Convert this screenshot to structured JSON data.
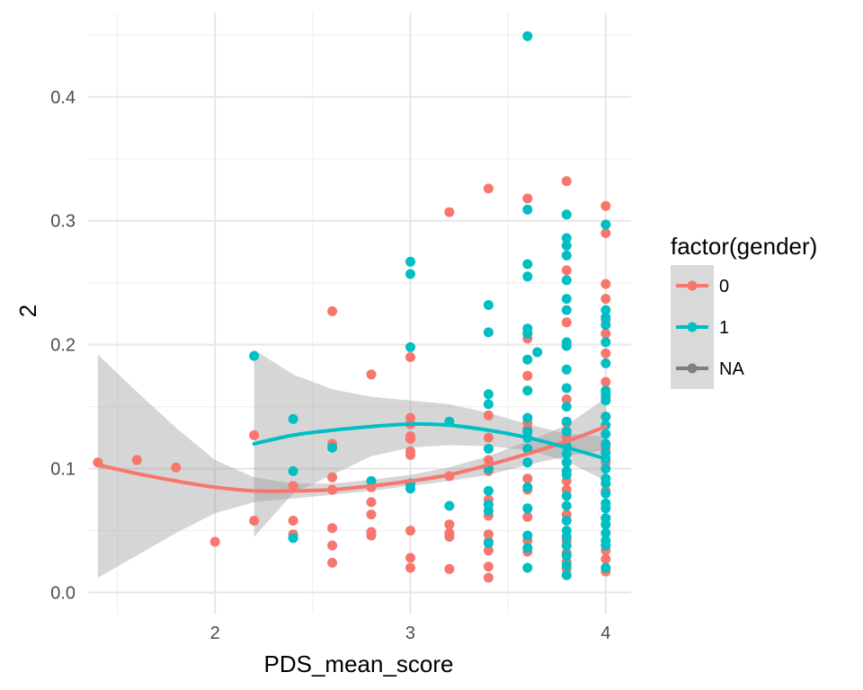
{
  "chart_data": {
    "type": "scatter",
    "title": "",
    "xlabel": "PDS_mean_score",
    "ylabel": "2",
    "xlim": [
      1.35,
      4.13
    ],
    "ylim": [
      -0.017,
      0.468
    ],
    "x_ticks": [
      2,
      3,
      4
    ],
    "x_tick_labels": [
      "2",
      "3",
      "4"
    ],
    "y_ticks": [
      0.0,
      0.1,
      0.2,
      0.3,
      0.4
    ],
    "y_tick_labels": [
      "0.0",
      "0.1",
      "0.2",
      "0.3",
      "0.4"
    ],
    "grid": true,
    "legend": {
      "title": "factor(gender)",
      "position": "right",
      "entries": [
        {
          "label": "0",
          "color": "#F8766D"
        },
        {
          "label": "1",
          "color": "#00BFC4"
        },
        {
          "label": "NA",
          "color": "#7F7F7F"
        }
      ]
    },
    "series": [
      {
        "name": "0",
        "color": "#F8766D",
        "points": [
          [
            1.4,
            0.105
          ],
          [
            1.6,
            0.107
          ],
          [
            1.8,
            0.101
          ],
          [
            2.0,
            0.041
          ],
          [
            2.2,
            0.127
          ],
          [
            2.2,
            0.058
          ],
          [
            2.4,
            0.086
          ],
          [
            2.4,
            0.058
          ],
          [
            2.4,
            0.047
          ],
          [
            2.6,
            0.227
          ],
          [
            2.6,
            0.12
          ],
          [
            2.6,
            0.093
          ],
          [
            2.6,
            0.083
          ],
          [
            2.6,
            0.052
          ],
          [
            2.6,
            0.038
          ],
          [
            2.6,
            0.024
          ],
          [
            2.8,
            0.176
          ],
          [
            2.8,
            0.085
          ],
          [
            2.8,
            0.073
          ],
          [
            2.8,
            0.063
          ],
          [
            2.8,
            0.049
          ],
          [
            2.8,
            0.046
          ],
          [
            3.0,
            0.19
          ],
          [
            3.0,
            0.141
          ],
          [
            3.0,
            0.136
          ],
          [
            3.0,
            0.126
          ],
          [
            3.0,
            0.124
          ],
          [
            3.0,
            0.114
          ],
          [
            3.0,
            0.111
          ],
          [
            3.0,
            0.088
          ],
          [
            3.0,
            0.05
          ],
          [
            3.0,
            0.028
          ],
          [
            3.0,
            0.02
          ],
          [
            3.2,
            0.307
          ],
          [
            3.2,
            0.094
          ],
          [
            3.2,
            0.055
          ],
          [
            3.2,
            0.048
          ],
          [
            3.2,
            0.045
          ],
          [
            3.2,
            0.019
          ],
          [
            3.4,
            0.326
          ],
          [
            3.4,
            0.143
          ],
          [
            3.4,
            0.125
          ],
          [
            3.4,
            0.107
          ],
          [
            3.4,
            0.098
          ],
          [
            3.4,
            0.075
          ],
          [
            3.4,
            0.062
          ],
          [
            3.4,
            0.047
          ],
          [
            3.4,
            0.041
          ],
          [
            3.4,
            0.034
          ],
          [
            3.4,
            0.021
          ],
          [
            3.4,
            0.012
          ],
          [
            3.6,
            0.318
          ],
          [
            3.6,
            0.205
          ],
          [
            3.6,
            0.175
          ],
          [
            3.6,
            0.137
          ],
          [
            3.6,
            0.132
          ],
          [
            3.6,
            0.092
          ],
          [
            3.6,
            0.083
          ],
          [
            3.6,
            0.061
          ],
          [
            3.6,
            0.042
          ],
          [
            3.6,
            0.033
          ],
          [
            3.8,
            0.332
          ],
          [
            3.8,
            0.26
          ],
          [
            3.8,
            0.218
          ],
          [
            3.8,
            0.156
          ],
          [
            3.8,
            0.137
          ],
          [
            3.8,
            0.125
          ],
          [
            3.8,
            0.118
          ],
          [
            3.8,
            0.09
          ],
          [
            3.8,
            0.083
          ],
          [
            3.8,
            0.063
          ],
          [
            3.8,
            0.042
          ],
          [
            3.8,
            0.032
          ],
          [
            3.8,
            0.025
          ],
          [
            3.8,
            0.019
          ],
          [
            4.0,
            0.312
          ],
          [
            4.0,
            0.29
          ],
          [
            4.0,
            0.249
          ],
          [
            4.0,
            0.237
          ],
          [
            4.0,
            0.22
          ],
          [
            4.0,
            0.209
          ],
          [
            4.0,
            0.193
          ],
          [
            4.0,
            0.17
          ],
          [
            4.0,
            0.157
          ],
          [
            4.0,
            0.142
          ],
          [
            4.0,
            0.117
          ],
          [
            4.0,
            0.105
          ],
          [
            4.0,
            0.082
          ],
          [
            4.0,
            0.06
          ],
          [
            4.0,
            0.034
          ],
          [
            4.0,
            0.027
          ],
          [
            4.0,
            0.017
          ]
        ]
      },
      {
        "name": "1",
        "color": "#00BFC4",
        "points": [
          [
            2.2,
            0.191
          ],
          [
            2.4,
            0.14
          ],
          [
            2.4,
            0.098
          ],
          [
            2.4,
            0.044
          ],
          [
            2.6,
            0.117
          ],
          [
            2.8,
            0.09
          ],
          [
            3.0,
            0.267
          ],
          [
            3.0,
            0.257
          ],
          [
            3.0,
            0.198
          ],
          [
            3.0,
            0.088
          ],
          [
            3.0,
            0.084
          ],
          [
            3.2,
            0.138
          ],
          [
            3.2,
            0.07
          ],
          [
            3.4,
            0.232
          ],
          [
            3.4,
            0.21
          ],
          [
            3.4,
            0.16
          ],
          [
            3.4,
            0.152
          ],
          [
            3.4,
            0.116
          ],
          [
            3.4,
            0.1
          ],
          [
            3.4,
            0.082
          ],
          [
            3.4,
            0.071
          ],
          [
            3.4,
            0.066
          ],
          [
            3.4,
            0.04
          ],
          [
            3.6,
            0.449
          ],
          [
            3.6,
            0.309
          ],
          [
            3.6,
            0.265
          ],
          [
            3.6,
            0.255
          ],
          [
            3.6,
            0.213
          ],
          [
            3.6,
            0.209
          ],
          [
            3.6,
            0.188
          ],
          [
            3.6,
            0.163
          ],
          [
            3.6,
            0.141
          ],
          [
            3.6,
            0.13
          ],
          [
            3.6,
            0.125
          ],
          [
            3.6,
            0.116
          ],
          [
            3.6,
            0.105
          ],
          [
            3.6,
            0.085
          ],
          [
            3.6,
            0.068
          ],
          [
            3.6,
            0.046
          ],
          [
            3.6,
            0.036
          ],
          [
            3.6,
            0.02
          ],
          [
            3.65,
            0.194
          ],
          [
            3.8,
            0.305
          ],
          [
            3.8,
            0.286
          ],
          [
            3.8,
            0.28
          ],
          [
            3.8,
            0.272
          ],
          [
            3.8,
            0.252
          ],
          [
            3.8,
            0.237
          ],
          [
            3.8,
            0.228
          ],
          [
            3.8,
            0.202
          ],
          [
            3.8,
            0.199
          ],
          [
            3.8,
            0.18
          ],
          [
            3.8,
            0.165
          ],
          [
            3.8,
            0.15
          ],
          [
            3.8,
            0.138
          ],
          [
            3.8,
            0.13
          ],
          [
            3.8,
            0.118
          ],
          [
            3.8,
            0.112
          ],
          [
            3.8,
            0.105
          ],
          [
            3.8,
            0.098
          ],
          [
            3.8,
            0.095
          ],
          [
            3.8,
            0.078
          ],
          [
            3.8,
            0.07
          ],
          [
            3.8,
            0.058
          ],
          [
            3.8,
            0.05
          ],
          [
            3.8,
            0.045
          ],
          [
            3.8,
            0.038
          ],
          [
            3.8,
            0.03
          ],
          [
            3.8,
            0.022
          ],
          [
            3.8,
            0.014
          ],
          [
            4.0,
            0.297
          ],
          [
            4.0,
            0.228
          ],
          [
            4.0,
            0.222
          ],
          [
            4.0,
            0.216
          ],
          [
            4.0,
            0.202
          ],
          [
            4.0,
            0.185
          ],
          [
            4.0,
            0.163
          ],
          [
            4.0,
            0.16
          ],
          [
            4.0,
            0.155
          ],
          [
            4.0,
            0.142
          ],
          [
            4.0,
            0.135
          ],
          [
            4.0,
            0.128
          ],
          [
            4.0,
            0.12
          ],
          [
            4.0,
            0.113
          ],
          [
            4.0,
            0.108
          ],
          [
            4.0,
            0.1
          ],
          [
            4.0,
            0.092
          ],
          [
            4.0,
            0.088
          ],
          [
            4.0,
            0.08
          ],
          [
            4.0,
            0.072
          ],
          [
            4.0,
            0.068
          ],
          [
            4.0,
            0.06
          ],
          [
            4.0,
            0.055
          ],
          [
            4.0,
            0.048
          ],
          [
            4.0,
            0.042
          ],
          [
            4.0,
            0.038
          ],
          [
            4.0,
            0.02
          ]
        ]
      }
    ],
    "smooth": [
      {
        "series": "0",
        "color": "#F8766D",
        "x": [
          1.4,
          1.6,
          1.8,
          2.0,
          2.2,
          2.4,
          2.6,
          2.8,
          3.0,
          3.2,
          3.4,
          3.6,
          3.8,
          4.0
        ],
        "y": [
          0.103,
          0.096,
          0.09,
          0.085,
          0.082,
          0.082,
          0.083,
          0.086,
          0.09,
          0.095,
          0.103,
          0.112,
          0.122,
          0.134
        ],
        "ci_lower": [
          0.012,
          0.03,
          0.048,
          0.064,
          0.073,
          0.076,
          0.079,
          0.082,
          0.086,
          0.09,
          0.095,
          0.103,
          0.11,
          0.115
        ],
        "ci_upper": [
          0.192,
          0.162,
          0.133,
          0.107,
          0.093,
          0.088,
          0.088,
          0.091,
          0.095,
          0.101,
          0.11,
          0.122,
          0.135,
          0.157
        ]
      },
      {
        "series": "1",
        "color": "#00BFC4",
        "x": [
          2.2,
          2.4,
          2.6,
          2.8,
          3.0,
          3.2,
          3.4,
          3.6,
          3.8,
          4.0
        ],
        "y": [
          0.12,
          0.127,
          0.131,
          0.134,
          0.136,
          0.135,
          0.131,
          0.125,
          0.117,
          0.108
        ],
        "ci_lower": [
          0.045,
          0.08,
          0.095,
          0.11,
          0.117,
          0.119,
          0.118,
          0.115,
          0.106,
          0.09
        ],
        "ci_upper": [
          0.196,
          0.176,
          0.164,
          0.158,
          0.155,
          0.152,
          0.145,
          0.136,
          0.128,
          0.126
        ]
      }
    ]
  }
}
